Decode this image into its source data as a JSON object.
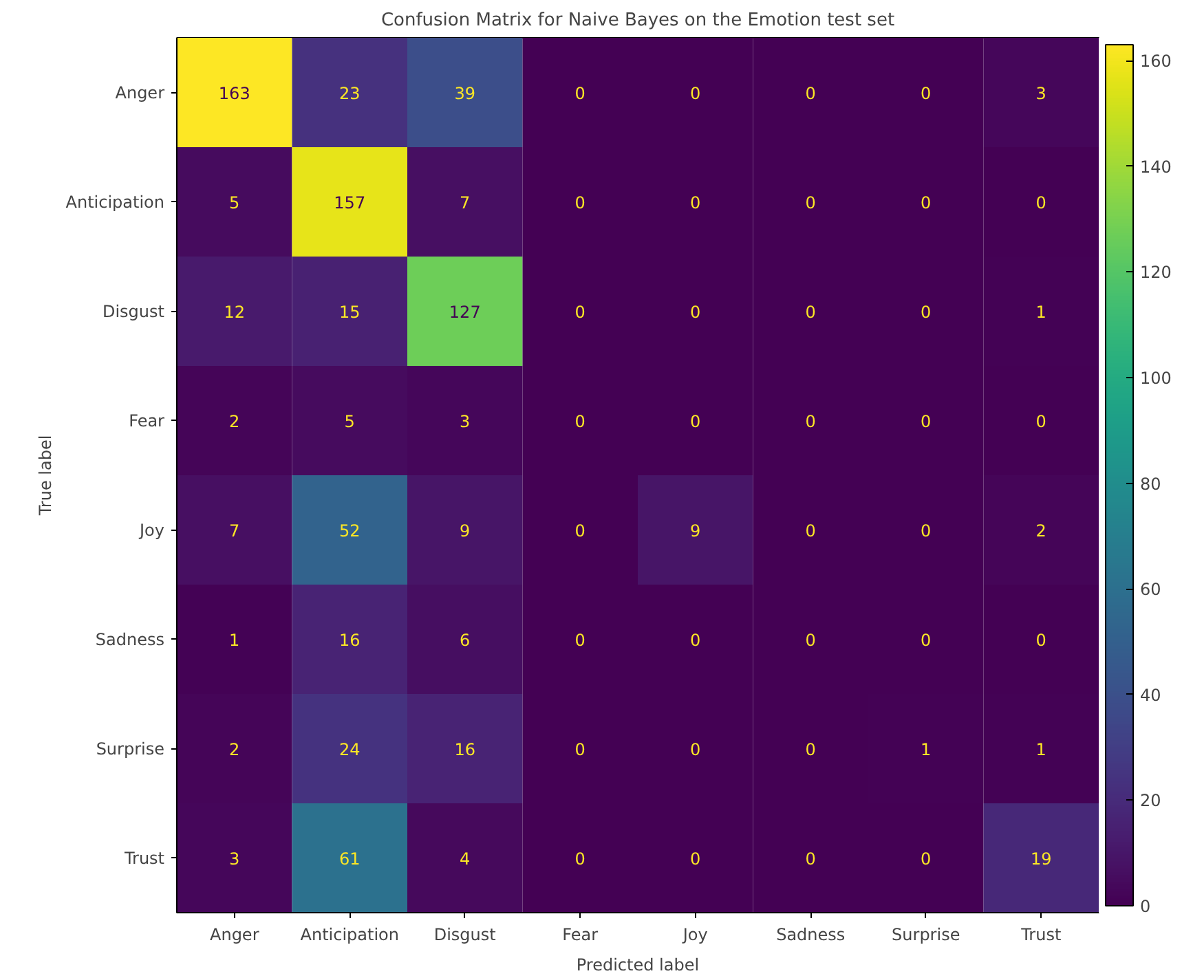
{
  "chart_data": {
    "type": "heatmap",
    "title": "Confusion Matrix for Naive Bayes on the Emotion test set",
    "xlabel": "Predicted label",
    "ylabel": "True label",
    "categories": [
      "Anger",
      "Anticipation",
      "Disgust",
      "Fear",
      "Joy",
      "Sadness",
      "Surprise",
      "Trust"
    ],
    "y_categories": [
      "Anger",
      "Anticipation",
      "Disgust",
      "Fear",
      "Joy",
      "Sadness",
      "Surprise",
      "Trust"
    ],
    "cells": [
      [
        163,
        23,
        39,
        0,
        0,
        0,
        0,
        3
      ],
      [
        5,
        157,
        7,
        0,
        0,
        0,
        0,
        0
      ],
      [
        12,
        15,
        127,
        0,
        0,
        0,
        0,
        1
      ],
      [
        2,
        5,
        3,
        0,
        0,
        0,
        0,
        0
      ],
      [
        7,
        52,
        9,
        0,
        9,
        0,
        0,
        2
      ],
      [
        1,
        16,
        6,
        0,
        0,
        0,
        0,
        0
      ],
      [
        2,
        24,
        16,
        0,
        0,
        0,
        1,
        1
      ],
      [
        3,
        61,
        4,
        0,
        0,
        0,
        0,
        19
      ]
    ],
    "clim": [
      0,
      163
    ],
    "cticks": [
      0,
      20,
      40,
      60,
      80,
      100,
      120,
      140,
      160
    ],
    "data_labels": true
  }
}
